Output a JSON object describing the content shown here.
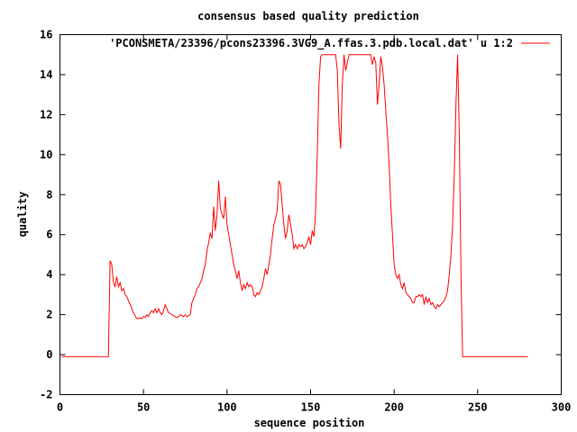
{
  "chart_data": {
    "type": "line",
    "title": "consensus based quality prediction",
    "xlabel": "sequence position",
    "ylabel": "quality",
    "xlim": [
      0,
      300
    ],
    "ylim": [
      -2,
      16
    ],
    "xticks": [
      0,
      50,
      100,
      150,
      200,
      250,
      300
    ],
    "yticks": [
      -2,
      0,
      2,
      4,
      6,
      8,
      10,
      12,
      14,
      16
    ],
    "grid": false,
    "legend_position": "top-right",
    "series": [
      {
        "name": "'PCONSMETA/23396/pcons23396.3VG9_A.ffas.3.pdb.local.dat' u 1:2",
        "color": "#ff0000",
        "points": [
          [
            1,
            -0.1
          ],
          [
            29,
            -0.1
          ],
          [
            30,
            4.7
          ],
          [
            31,
            4.5
          ],
          [
            32,
            3.6
          ],
          [
            33,
            3.4
          ],
          [
            34,
            3.9
          ],
          [
            35,
            3.4
          ],
          [
            36,
            3.6
          ],
          [
            37,
            3.2
          ],
          [
            38,
            3.3
          ],
          [
            39,
            3.0
          ],
          [
            40,
            2.9
          ],
          [
            41,
            2.7
          ],
          [
            42,
            2.5
          ],
          [
            43,
            2.3
          ],
          [
            44,
            2.1
          ],
          [
            45,
            1.95
          ],
          [
            46,
            1.8
          ],
          [
            47,
            1.8
          ],
          [
            48,
            1.85
          ],
          [
            49,
            1.8
          ],
          [
            50,
            1.9
          ],
          [
            51,
            1.85
          ],
          [
            52,
            2.0
          ],
          [
            53,
            1.9
          ],
          [
            54,
            2.1
          ],
          [
            55,
            2.2
          ],
          [
            56,
            2.1
          ],
          [
            57,
            2.3
          ],
          [
            58,
            2.1
          ],
          [
            59,
            2.3
          ],
          [
            60,
            2.1
          ],
          [
            61,
            2.0
          ],
          [
            62,
            2.2
          ],
          [
            63,
            2.5
          ],
          [
            64,
            2.3
          ],
          [
            65,
            2.1
          ],
          [
            66,
            2.05
          ],
          [
            67,
            2.0
          ],
          [
            68,
            1.95
          ],
          [
            69,
            1.9
          ],
          [
            70,
            1.85
          ],
          [
            71,
            1.9
          ],
          [
            72,
            2.0
          ],
          [
            73,
            1.95
          ],
          [
            74,
            1.9
          ],
          [
            75,
            2.0
          ],
          [
            76,
            1.9
          ],
          [
            77,
            1.95
          ],
          [
            78,
            2.0
          ],
          [
            79,
            2.6
          ],
          [
            80,
            2.8
          ],
          [
            81,
            3.0
          ],
          [
            82,
            3.3
          ],
          [
            83,
            3.4
          ],
          [
            84,
            3.6
          ],
          [
            85,
            3.8
          ],
          [
            86,
            4.2
          ],
          [
            87,
            4.5
          ],
          [
            88,
            5.2
          ],
          [
            89,
            5.6
          ],
          [
            90,
            6.1
          ],
          [
            91,
            5.8
          ],
          [
            92,
            7.4
          ],
          [
            93,
            6.2
          ],
          [
            94,
            7.0
          ],
          [
            95,
            8.7
          ],
          [
            96,
            7.3
          ],
          [
            97,
            7.0
          ],
          [
            98,
            6.8
          ],
          [
            99,
            7.9
          ],
          [
            100,
            6.5
          ],
          [
            101,
            6.0
          ],
          [
            102,
            5.5
          ],
          [
            103,
            5.0
          ],
          [
            104,
            4.5
          ],
          [
            105,
            4.2
          ],
          [
            106,
            3.8
          ],
          [
            107,
            4.2
          ],
          [
            108,
            3.6
          ],
          [
            109,
            3.2
          ],
          [
            110,
            3.5
          ],
          [
            111,
            3.3
          ],
          [
            112,
            3.6
          ],
          [
            113,
            3.4
          ],
          [
            114,
            3.5
          ],
          [
            115,
            3.4
          ],
          [
            116,
            3.0
          ],
          [
            117,
            2.9
          ],
          [
            118,
            3.1
          ],
          [
            119,
            3.0
          ],
          [
            120,
            3.2
          ],
          [
            121,
            3.4
          ],
          [
            122,
            3.8
          ],
          [
            123,
            4.3
          ],
          [
            124,
            4.0
          ],
          [
            125,
            4.5
          ],
          [
            126,
            5.0
          ],
          [
            127,
            5.8
          ],
          [
            128,
            6.5
          ],
          [
            129,
            6.8
          ],
          [
            130,
            7.2
          ],
          [
            131,
            8.7
          ],
          [
            132,
            8.5
          ],
          [
            133,
            7.5
          ],
          [
            134,
            6.5
          ],
          [
            135,
            5.8
          ],
          [
            136,
            6.2
          ],
          [
            137,
            7.0
          ],
          [
            138,
            6.5
          ],
          [
            139,
            6.0
          ],
          [
            140,
            5.3
          ],
          [
            141,
            5.5
          ],
          [
            142,
            5.3
          ],
          [
            143,
            5.5
          ],
          [
            144,
            5.4
          ],
          [
            145,
            5.5
          ],
          [
            146,
            5.3
          ],
          [
            147,
            5.4
          ],
          [
            148,
            5.6
          ],
          [
            149,
            5.9
          ],
          [
            150,
            5.5
          ],
          [
            151,
            6.2
          ],
          [
            152,
            5.9
          ],
          [
            153,
            7.2
          ],
          [
            154,
            10.0
          ],
          [
            155,
            13.5
          ],
          [
            156,
            14.9
          ],
          [
            157,
            15.0
          ],
          [
            165,
            15.0
          ],
          [
            166,
            14.2
          ],
          [
            167,
            11.5
          ],
          [
            168,
            10.3
          ],
          [
            169,
            13.5
          ],
          [
            170,
            15.0
          ],
          [
            171,
            14.2
          ],
          [
            172,
            14.6
          ],
          [
            173,
            15.0
          ],
          [
            186,
            15.0
          ],
          [
            187,
            14.5
          ],
          [
            188,
            14.9
          ],
          [
            189,
            14.6
          ],
          [
            190,
            12.5
          ],
          [
            191,
            13.5
          ],
          [
            192,
            14.9
          ],
          [
            193,
            14.4
          ],
          [
            194,
            13.5
          ],
          [
            195,
            12.2
          ],
          [
            196,
            11.0
          ],
          [
            197,
            9.5
          ],
          [
            198,
            7.5
          ],
          [
            199,
            6.0
          ],
          [
            200,
            4.5
          ],
          [
            201,
            4.0
          ],
          [
            202,
            3.8
          ],
          [
            203,
            4.0
          ],
          [
            204,
            3.5
          ],
          [
            205,
            3.3
          ],
          [
            206,
            3.6
          ],
          [
            207,
            3.1
          ],
          [
            208,
            3.0
          ],
          [
            209,
            2.9
          ],
          [
            210,
            2.8
          ],
          [
            211,
            2.6
          ],
          [
            212,
            2.6
          ],
          [
            213,
            2.9
          ],
          [
            214,
            2.9
          ],
          [
            215,
            3.0
          ],
          [
            216,
            2.9
          ],
          [
            217,
            3.0
          ],
          [
            218,
            2.5
          ],
          [
            219,
            2.9
          ],
          [
            220,
            2.6
          ],
          [
            221,
            2.8
          ],
          [
            222,
            2.5
          ],
          [
            223,
            2.6
          ],
          [
            224,
            2.4
          ],
          [
            225,
            2.3
          ],
          [
            226,
            2.5
          ],
          [
            227,
            2.4
          ],
          [
            228,
            2.5
          ],
          [
            229,
            2.6
          ],
          [
            230,
            2.7
          ],
          [
            231,
            2.9
          ],
          [
            232,
            3.2
          ],
          [
            233,
            4.0
          ],
          [
            234,
            5.0
          ],
          [
            235,
            6.5
          ],
          [
            236,
            9.0
          ],
          [
            237,
            12.5
          ],
          [
            238,
            15.0
          ],
          [
            239,
            11.0
          ],
          [
            240,
            4.0
          ],
          [
            241,
            -0.1
          ],
          [
            280,
            -0.1
          ]
        ]
      }
    ]
  }
}
